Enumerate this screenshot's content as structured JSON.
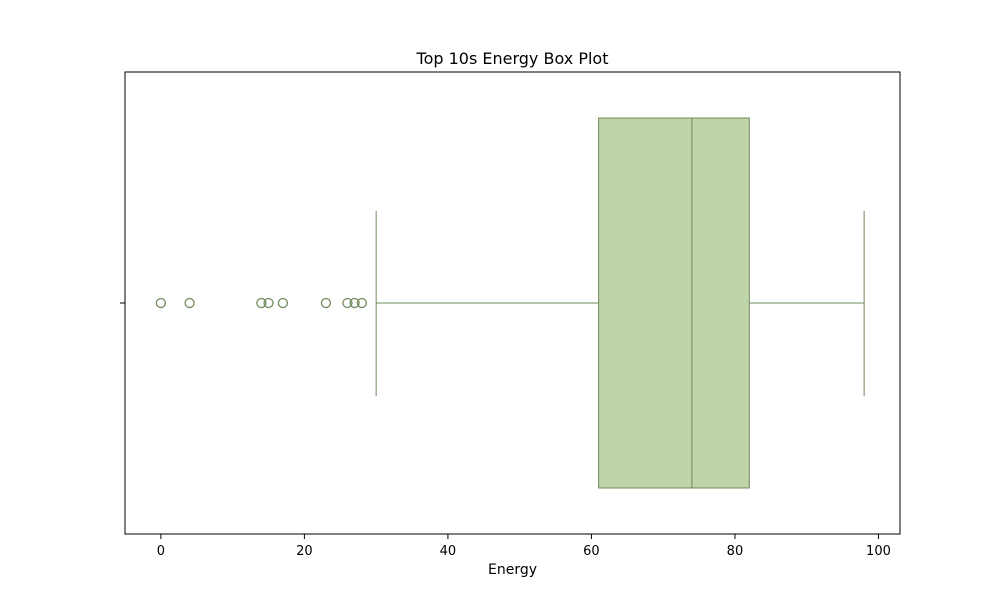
{
  "chart_data": {
    "type": "box",
    "title": "Top 10s Energy Box Plot",
    "xlabel": "Energy",
    "ylabel": "",
    "xlim": [
      -5,
      103
    ],
    "xticks": [
      0,
      20,
      40,
      60,
      80,
      100
    ],
    "grid": false,
    "legend": "none",
    "box": {
      "whisker_low": 30,
      "q1": 61,
      "median": 74,
      "q3": 82,
      "whisker_high": 98
    },
    "outliers": [
      0,
      4,
      14,
      15,
      17,
      23,
      26,
      27,
      28
    ],
    "colors": {
      "box_fill": "#bfd4a9",
      "box_edge": "#6f8a5c",
      "outlier_edge": "#6f8a5c",
      "axis": "#000000"
    }
  }
}
